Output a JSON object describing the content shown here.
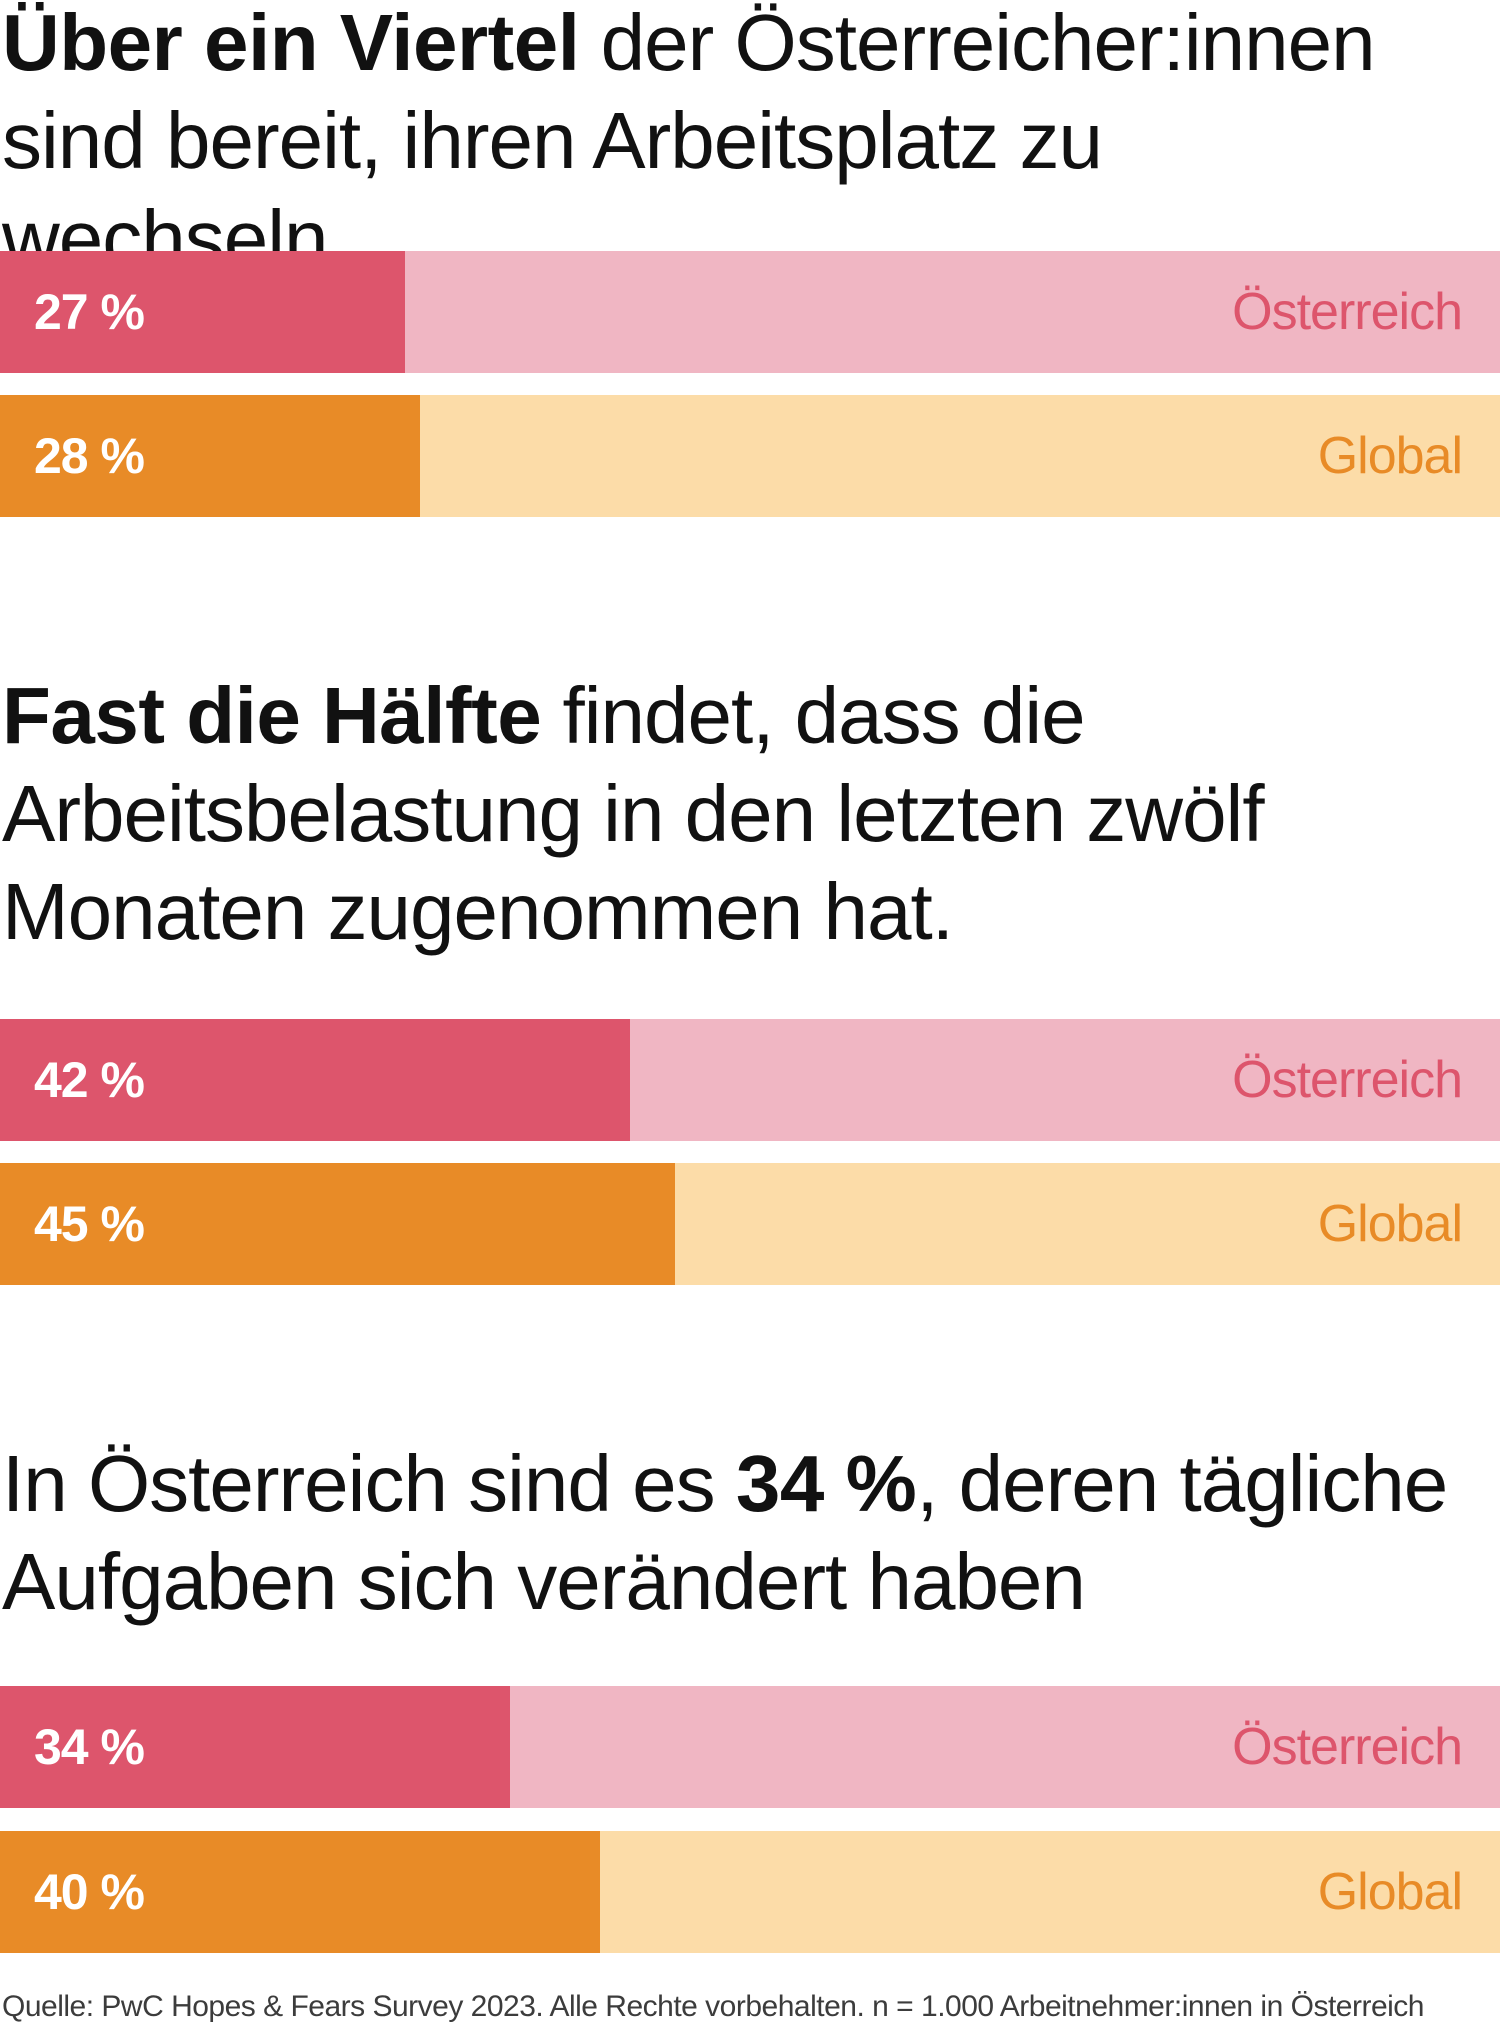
{
  "colors": {
    "oesterreich_fill": "#DD556C",
    "oesterreich_track": "#F0B6C3",
    "oesterreich_label": "#DD556C",
    "global_fill": "#E88B27",
    "global_track": "#FCDCA8",
    "global_label": "#E88B27"
  },
  "sections": [
    {
      "headline_bold": "Über ein Viertel",
      "headline_rest": " der Österreicher:innen sind bereit, ihren Arbeitsplatz zu wechseln.",
      "bars": [
        {
          "value_label": "27 %",
          "label": "Österreich"
        },
        {
          "value_label": "28 %",
          "label": "Global"
        }
      ]
    },
    {
      "headline_bold": "Fast die Hälfte",
      "headline_rest": " findet, dass die Arbeitsbelastung in den letzten zwölf Monaten zugenommen hat.",
      "bars": [
        {
          "value_label": "42 %",
          "label": "Österreich"
        },
        {
          "value_label": "45 %",
          "label": "Global"
        }
      ]
    },
    {
      "headline_pre": "In Österreich sind es ",
      "headline_bold": "34 %",
      "headline_rest": ", deren tägliche Aufgaben sich verändert haben",
      "bars": [
        {
          "value_label": "34 %",
          "label": "Österreich"
        },
        {
          "value_label": "40 %",
          "label": "Global"
        }
      ]
    }
  ],
  "footnote": "Quelle: PwC Hopes & Fears Survey 2023. Alle Rechte vorbehalten. n = 1.000 Arbeitnehmer:innen in Österreich",
  "chart_data": [
    {
      "type": "bar",
      "orientation": "horizontal",
      "categories": [
        "Österreich",
        "Global"
      ],
      "values": [
        27,
        28
      ],
      "unit": "%",
      "xlim": [
        0,
        100
      ]
    },
    {
      "type": "bar",
      "orientation": "horizontal",
      "categories": [
        "Österreich",
        "Global"
      ],
      "values": [
        42,
        45
      ],
      "unit": "%",
      "xlim": [
        0,
        100
      ]
    },
    {
      "type": "bar",
      "orientation": "horizontal",
      "categories": [
        "Österreich",
        "Global"
      ],
      "values": [
        34,
        40
      ],
      "unit": "%",
      "xlim": [
        0,
        100
      ]
    }
  ]
}
